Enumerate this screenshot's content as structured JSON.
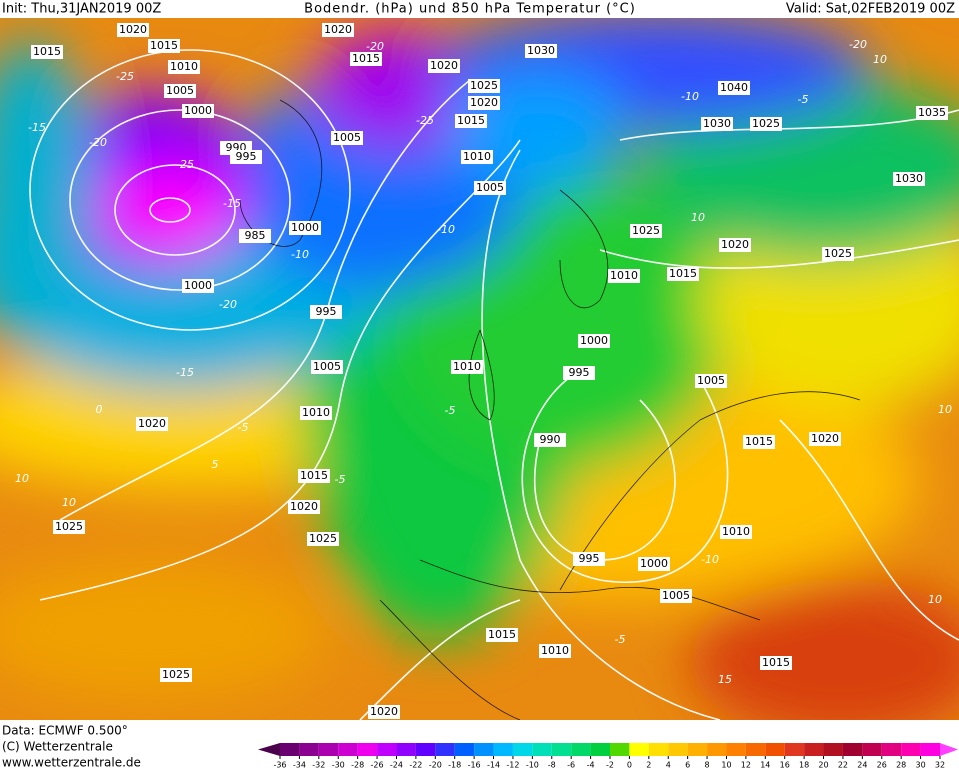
{
  "header": {
    "init": "Init: Thu,31JAN2019 00Z",
    "title": "Bodendr. (hPa) und 850 hPa Temperatur (°C)",
    "valid": "Valid: Sat,02FEB2019 00Z"
  },
  "footer": {
    "data": "Data: ECMWF  0.500°",
    "copyright": "(C) Wetterzentrale",
    "url": "www.wetterzentrale.de"
  },
  "isobar_labels": [
    "1020",
    "1015",
    "1015",
    "1010",
    "1005",
    "1000",
    "990",
    "995",
    "985",
    "1000",
    "1000",
    "995",
    "1005",
    "1010",
    "1020",
    "1015",
    "1020",
    "1025",
    "1025",
    "1025",
    "1020",
    "1020",
    "1015",
    "1020",
    "1025",
    "1020",
    "1015",
    "1005",
    "1010",
    "1005",
    "1030",
    "1040",
    "1030",
    "1025",
    "1035",
    "1030",
    "1025",
    "1020",
    "1025",
    "1010",
    "1015",
    "1000",
    "995",
    "1010",
    "990",
    "1005",
    "1015",
    "1020",
    "1010",
    "1000",
    "995",
    "1005",
    "1015",
    "1010",
    "1015"
  ],
  "temperature_labels": [
    "-25",
    "-15",
    "-20",
    "-25",
    "-15",
    "-20",
    "-15",
    "-10",
    "-5",
    "0",
    "-5",
    "5",
    "10",
    "10",
    "-10",
    "-5",
    "-20",
    "-25",
    "-20",
    "-10",
    "-5",
    "10",
    "10",
    "-5",
    "-10",
    "10",
    "15",
    "10"
  ],
  "color_scale": {
    "ticks": [
      -36,
      -34,
      -32,
      -30,
      -28,
      -26,
      -24,
      -22,
      -20,
      -18,
      -16,
      -14,
      -12,
      -10,
      -8,
      -6,
      -4,
      -2,
      0,
      2,
      4,
      6,
      8,
      10,
      12,
      14,
      16,
      18,
      20,
      22,
      24,
      26,
      28,
      30,
      32
    ],
    "colors": [
      "#4a004a",
      "#6a0070",
      "#8a0090",
      "#aa00b0",
      "#cc00d0",
      "#ee00ee",
      "#c000ff",
      "#9000ff",
      "#6000ff",
      "#3030ff",
      "#0060ff",
      "#0090ff",
      "#00b8ff",
      "#00d8e8",
      "#00e0b8",
      "#00e090",
      "#00d868",
      "#00d040",
      "#50d800",
      "#ffff00",
      "#ffe000",
      "#ffc800",
      "#ffb000",
      "#ff9800",
      "#ff8000",
      "#f86800",
      "#f05000",
      "#e03820",
      "#c82020",
      "#b01020",
      "#a00030",
      "#c00050",
      "#e00080",
      "#ff00b0",
      "#ff00e0",
      "#ff40ff"
    ]
  }
}
